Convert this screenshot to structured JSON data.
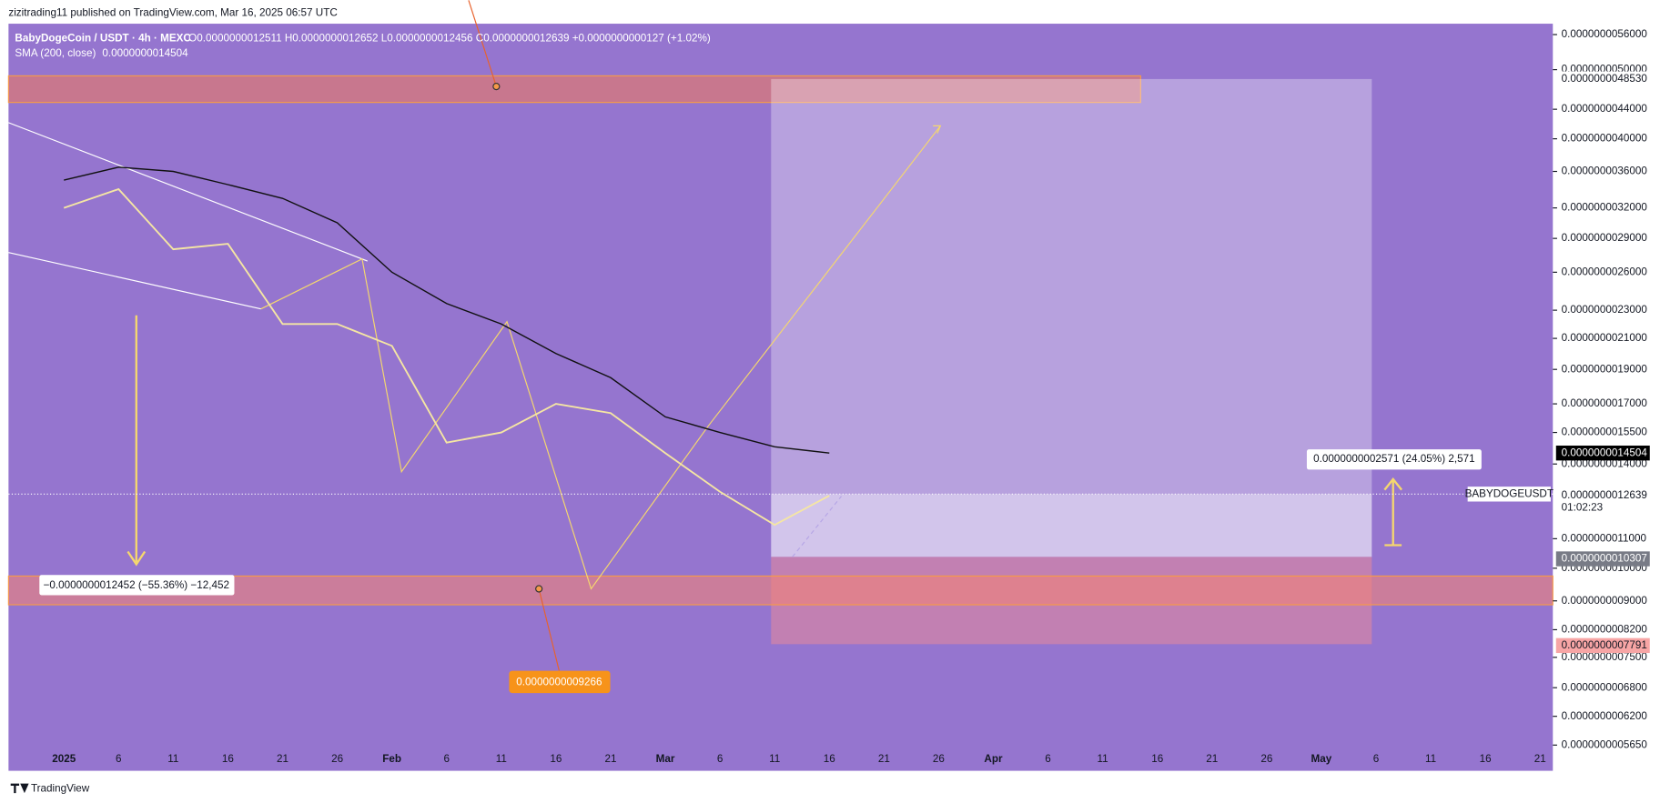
{
  "chart_data": {
    "type": "line",
    "published": "zizitrading11 published on TradingView.com, Mar 16, 2025 06:57 UTC",
    "title": "BabyDogeCoin / USDT · 4h · MEXC",
    "ohlc": "O0.0000000012511 H0.0000000012652 L0.0000000012456 C0.0000000012639 +0.0000000000127 (+1.02%)",
    "indicator": "SMA (200, close)",
    "indicator_value": "0.0000000014504",
    "brand": "TradingView",
    "symbol": "BABYDOGEUSDT",
    "countdown": "01:02:23",
    "categories": [
      "2025",
      "6",
      "11",
      "16",
      "21",
      "26",
      "Feb",
      "6",
      "11",
      "16",
      "21",
      "Mar",
      "6",
      "11",
      "16",
      "21",
      "26",
      "Apr",
      "6",
      "11",
      "16",
      "21",
      "26",
      "May",
      "6",
      "11",
      "16",
      "21"
    ],
    "series": [
      {
        "name": "BABYDOGEUSDT",
        "color": "#f5e6a3",
        "values": [
          3.2e-09,
          3.4e-09,
          2.8e-09,
          2.85e-09,
          2.2e-09,
          2.2e-09,
          2.05e-09,
          1.5e-09,
          1.55e-09,
          1.7e-09,
          1.65e-09,
          1.45e-09,
          1.28e-09,
          1.15e-09,
          1.2639e-09,
          null,
          null,
          null,
          null,
          null,
          null,
          null,
          null,
          null,
          null,
          null,
          null,
          null
        ]
      },
      {
        "name": "SMA (200, close)",
        "color": "#111111",
        "values": [
          3.5e-09,
          3.65e-09,
          3.6e-09,
          3.45e-09,
          3.3e-09,
          3.05e-09,
          2.6e-09,
          2.35e-09,
          2.2e-09,
          2e-09,
          1.85e-09,
          1.63e-09,
          1.55e-09,
          1.48e-09,
          1.4504e-09,
          null,
          null,
          null,
          null,
          null,
          null,
          null,
          null,
          null,
          null,
          null,
          null,
          null
        ]
      }
    ],
    "log_scale": true,
    "ylim": [
      5.2e-10,
      5.8e-09
    ],
    "yticks": [
      {
        "value": 5.6e-09,
        "label": "0.0000000056000"
      },
      {
        "value": 5e-09,
        "label": "0.0000000050000"
      },
      {
        "value": 4.4e-09,
        "label": "0.0000000044000"
      },
      {
        "value": 4e-09,
        "label": "0.0000000040000"
      },
      {
        "value": 3.6e-09,
        "label": "0.0000000036000"
      },
      {
        "value": 3.2e-09,
        "label": "0.0000000032000"
      },
      {
        "value": 2.9e-09,
        "label": "0.0000000029000"
      },
      {
        "value": 2.6e-09,
        "label": "0.0000000026000"
      },
      {
        "value": 2.3e-09,
        "label": "0.0000000023000"
      },
      {
        "value": 2.1e-09,
        "label": "0.0000000021000"
      },
      {
        "value": 1.9e-09,
        "label": "0.0000000019000"
      },
      {
        "value": 1.7e-09,
        "label": "0.0000000017000"
      },
      {
        "value": 1.55e-09,
        "label": "0.0000000015500"
      },
      {
        "value": 1.4e-09,
        "label": "0.0000000014000"
      },
      {
        "value": 1.1e-09,
        "label": "0.0000000011000"
      },
      {
        "value": 1e-09,
        "label": "0.0000000010000"
      },
      {
        "value": 9e-10,
        "label": "0.0000000009000"
      },
      {
        "value": 8.2e-10,
        "label": "0.0000000008200"
      },
      {
        "value": 7.5e-10,
        "label": "0.0000000007500"
      },
      {
        "value": 6.8e-10,
        "label": "0.0000000006800"
      },
      {
        "value": 6.2e-10,
        "label": "0.0000000006200"
      },
      {
        "value": 5.65e-10,
        "label": "0.0000000005650"
      }
    ],
    "price_markers": [
      {
        "value": 4.853e-09,
        "label": "0.0000000048530",
        "color": "#ffffff",
        "text_color": "#131722"
      },
      {
        "value": 1.4504e-09,
        "label": "0.0000000014504",
        "color": "#000000",
        "text_color": "#ffffff"
      },
      {
        "value": 1.2639e-09,
        "label": "0.0000000012639",
        "color": "#ffffff",
        "text_color": "#131722"
      },
      {
        "value": 1.0307e-09,
        "label": "0.0000000010307",
        "color": "#787b86",
        "text_color": "#ffffff"
      },
      {
        "value": 7.791e-10,
        "label": "0.0000000007791",
        "color": "#f7a5a5",
        "text_color": "#131722"
      }
    ],
    "annotations": {
      "target_measure": "0.0000000002571 (24.05%) 2,571",
      "drop_measure": "−0.0000000012452 (−55.36%) −12,452",
      "support_price": "0.0000000009266"
    }
  }
}
